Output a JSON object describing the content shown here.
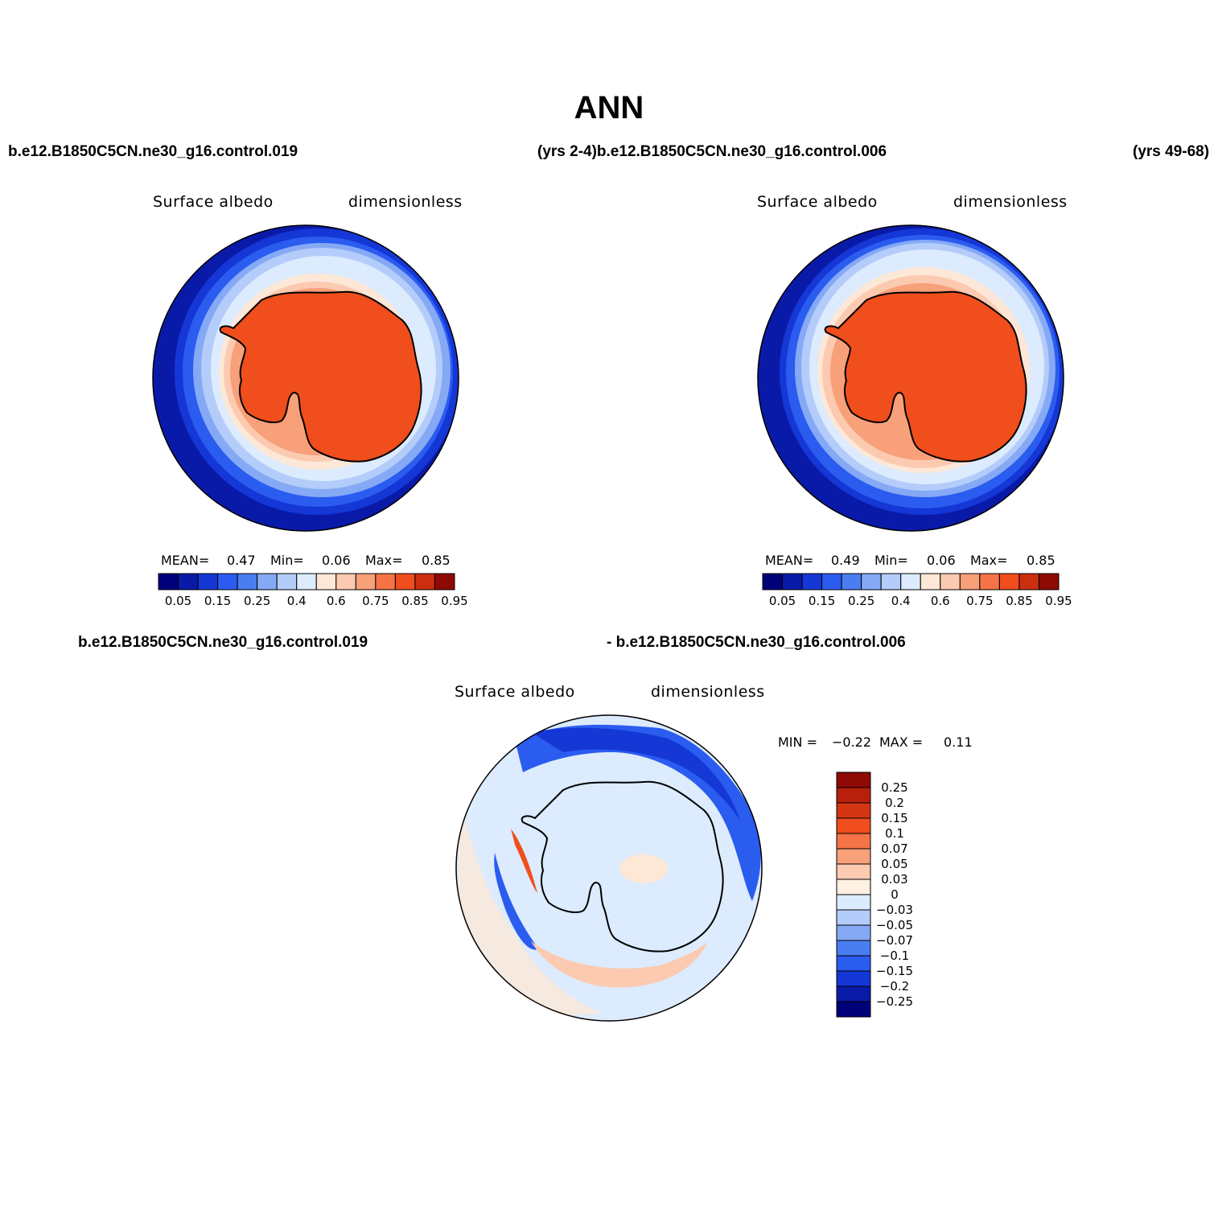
{
  "title": "ANN",
  "top_left_case": "b.e12.B1850C5CN.ne30_g16.control.019",
  "top_center_case": "(yrs 2-4)b.e12.B1850C5CN.ne30_g16.control.006",
  "top_right_years": "(yrs 49-68)",
  "panels": [
    {
      "variable": "Surface albedo",
      "units": "dimensionless",
      "stats": {
        "mean_label": "MEAN=",
        "mean": "0.47",
        "min_label": "Min=",
        "min": "0.06",
        "max_label": "Max=",
        "max": "0.85"
      },
      "colorbar": {
        "colors": [
          "#00007a",
          "#0a1aa8",
          "#1437d6",
          "#2b5cf0",
          "#4a7ef0",
          "#86a9f6",
          "#b4ccfa",
          "#dcebfd",
          "#fde8d8",
          "#fccab0",
          "#f8a07a",
          "#f57346",
          "#f04e1c",
          "#cc2e10",
          "#8e0a05"
        ],
        "tick_labels": [
          "0.05",
          "0.15",
          "0.25",
          "0.4",
          "0.6",
          "0.75",
          "0.85",
          "0.95"
        ]
      }
    },
    {
      "variable": "Surface albedo",
      "units": "dimensionless",
      "stats": {
        "mean_label": "MEAN=",
        "mean": "0.49",
        "min_label": "Min=",
        "min": "0.06",
        "max_label": "Max=",
        "max": "0.85"
      },
      "colorbar": {
        "colors": [
          "#00007a",
          "#0a1aa8",
          "#1437d6",
          "#2b5cf0",
          "#4a7ef0",
          "#86a9f6",
          "#b4ccfa",
          "#dcebfd",
          "#fde8d8",
          "#fccab0",
          "#f8a07a",
          "#f57346",
          "#f04e1c",
          "#cc2e10",
          "#8e0a05"
        ],
        "tick_labels": [
          "0.05",
          "0.15",
          "0.25",
          "0.4",
          "0.6",
          "0.75",
          "0.85",
          "0.95"
        ]
      }
    }
  ],
  "diff_case_left": "b.e12.B1850C5CN.ne30_g16.control.019",
  "diff_case_right": "- b.e12.B1850C5CN.ne30_g16.control.006",
  "diff_panel": {
    "variable": "Surface albedo",
    "units": "dimensionless",
    "minmax": {
      "min_label": "MIN =",
      "min": "−0.22",
      "max_label": "MAX =",
      "max": "0.11"
    },
    "colorbar": {
      "colors": [
        "#8e0a05",
        "#b8200c",
        "#d43614",
        "#f04e1c",
        "#f57346",
        "#f8a07a",
        "#fccab0",
        "#fef0e2",
        "#dcebfd",
        "#b4ccfa",
        "#86a9f6",
        "#4a7ef0",
        "#2b5cf0",
        "#1437d6",
        "#0a1aa8",
        "#00007a"
      ],
      "tick_labels": [
        "0.25",
        "0.2",
        "0.15",
        "0.1",
        "0.07",
        "0.05",
        "0.03",
        "0",
        "−0.03",
        "−0.05",
        "−0.07",
        "−0.1",
        "−0.15",
        "−0.2",
        "−0.25"
      ]
    }
  }
}
